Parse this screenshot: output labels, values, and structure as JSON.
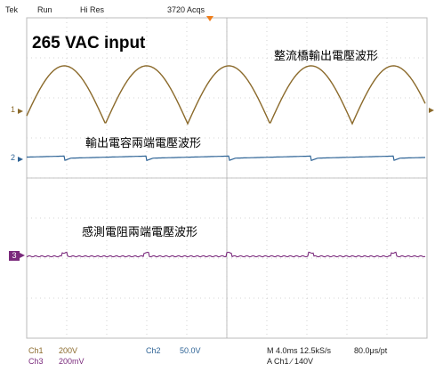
{
  "header": {
    "brand": "Tek",
    "run_state": "Run",
    "mode": "Hi Res",
    "acquisitions": "3720 Acqs"
  },
  "annotations": {
    "title": "265 VAC input",
    "ch1_label": "整流橋輸出電壓波形",
    "ch2_label": "輸出電容兩端電壓波形",
    "ch3_label": "感測電阻兩端電壓波形"
  },
  "markers": {
    "ch1": "1",
    "ch2": "2",
    "ch3": "3"
  },
  "readouts": {
    "ch1_name": "Ch1",
    "ch1_scale": "200V",
    "ch3_name": "Ch3",
    "ch3_scale": "200mV",
    "ch2_name": "Ch2",
    "ch2_scale": "50.0V",
    "timebase": "M 4.0ms 12.5kS/s",
    "sample_interval": "80.0μs/pt",
    "trigger": "A  Ch1  ∕  140V"
  },
  "colors": {
    "ch1": "#8b6a2b",
    "ch2": "#2f6496",
    "ch3": "#7a2a7c",
    "grid": "#c8c8c8",
    "trigger_marker": "#ef7d1a"
  }
}
